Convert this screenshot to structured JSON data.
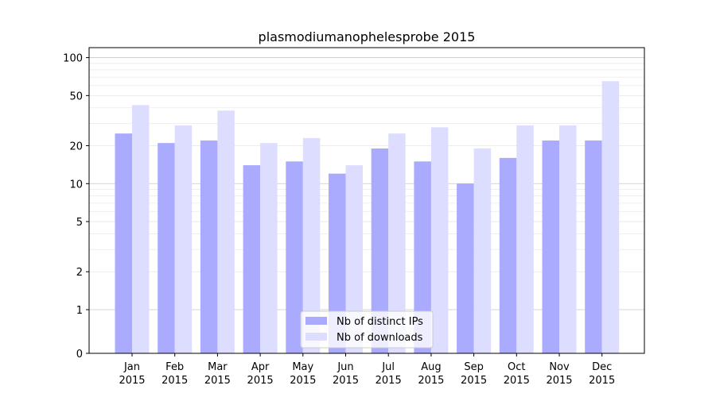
{
  "chart_data": {
    "type": "bar",
    "title": "plasmodiumanophelesprobe 2015",
    "xlabel": "",
    "ylabel": "",
    "y_scale": "symlog",
    "ylim": [
      0,
      120
    ],
    "y_tick_labels": [
      "0",
      "1",
      "2",
      "5",
      "10",
      "20",
      "50",
      "100"
    ],
    "y_ticks": [
      0,
      1,
      2,
      5,
      10,
      20,
      50,
      100
    ],
    "grid": "horizontal",
    "legend_position": "bottom-center",
    "categories": [
      {
        "month": "Jan",
        "year": "2015"
      },
      {
        "month": "Feb",
        "year": "2015"
      },
      {
        "month": "Mar",
        "year": "2015"
      },
      {
        "month": "Apr",
        "year": "2015"
      },
      {
        "month": "May",
        "year": "2015"
      },
      {
        "month": "Jun",
        "year": "2015"
      },
      {
        "month": "Jul",
        "year": "2015"
      },
      {
        "month": "Aug",
        "year": "2015"
      },
      {
        "month": "Sep",
        "year": "2015"
      },
      {
        "month": "Oct",
        "year": "2015"
      },
      {
        "month": "Nov",
        "year": "2015"
      },
      {
        "month": "Dec",
        "year": "2015"
      }
    ],
    "series": [
      {
        "name": "Nb of distinct IPs",
        "color": "#aaaaff",
        "values": [
          25,
          21,
          22,
          14,
          15,
          12,
          19,
          15,
          10,
          16,
          22,
          22
        ]
      },
      {
        "name": "Nb of downloads",
        "color": "#ddddff",
        "values": [
          42,
          29,
          38,
          21,
          23,
          14,
          25,
          28,
          19,
          29,
          29,
          65
        ]
      }
    ]
  }
}
